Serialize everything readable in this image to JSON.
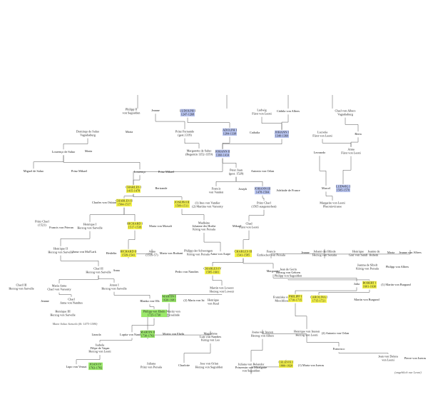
{
  "nodes": [
    {
      "lines": [
        "Philipp II",
        "von Sagrafden"
      ]
    },
    {
      "lines": [
        "Jeanne"
      ]
    },
    {
      "lines": [
        "LUDOLPH I",
        "1247-1268"
      ]
    },
    {
      "lines": [
        "Ludwig",
        "Fürst von Leoni"
      ]
    },
    {
      "lines": [
        "Cäthila von Albers"
      ]
    },
    {
      "lines": [
        "Chad von Albers",
        "Vagrababurg"
      ]
    },
    {
      "lines": [
        "Dominqo de Saluo",
        "Vagrababurg"
      ]
    },
    {
      "lines": [
        "Maria"
      ]
    },
    {
      "lines": [
        "Prinz Fernando",
        "(gest.1319)"
      ]
    },
    {
      "lines": [
        "ADOLPH I",
        "1284-1338"
      ]
    },
    {
      "lines": [
        "Cathalia"
      ]
    },
    {
      "lines": [
        "JOHANN I",
        "1340-1360"
      ]
    },
    {
      "lines": [
        "Lucretia",
        "Fürst von Leoni"
      ]
    },
    {
      "lines": [
        "Berta"
      ]
    },
    {
      "lines": [
        "Lourenço de Saluo"
      ]
    },
    {
      "lines": [
        "Maria"
      ]
    },
    {
      "lines": [
        "Margarette de Saluo",
        "(Regentin 1352-1359)"
      ]
    },
    {
      "lines": [
        "JOHANN II",
        "1360-1414"
      ]
    },
    {
      "lines": [
        "Leonardo"
      ]
    },
    {
      "lines": [
        "Anna",
        "Fürst von Leoni"
      ]
    },
    {
      "lines": [
        "Miguel de Saluo"
      ]
    },
    {
      "lines": [
        "Prinz Mikael"
      ]
    },
    {
      "lines": [
        "Lourenço"
      ]
    },
    {
      "lines": [
        "Prinz Mikael"
      ]
    },
    {
      "lines": [
        "Peter Juan",
        "(gest. 1528)"
      ]
    },
    {
      "lines": [
        "Antonio von Orlan"
      ]
    },
    {
      "lines": [
        "CHARLES I",
        "1415-1478"
      ]
    },
    {
      "lines": [
        "Bertrande"
      ]
    },
    {
      "lines": [
        "Francis",
        "von Vanden"
      ]
    },
    {
      "lines": [
        "Joseph"
      ]
    },
    {
      "lines": [
        "JOHANN III",
        "1478-1504"
      ]
    },
    {
      "lines": [
        "Adelaide de France"
      ]
    },
    {
      "lines": [
        "Marcel"
      ]
    },
    {
      "lines": [
        "LUDWIG I",
        "1505-1570"
      ]
    },
    {
      "lines": [
        "Charles von Osbian"
      ]
    },
    {
      "lines": [
        "CHARLES II",
        "1504-1517"
      ]
    },
    {
      "lines": [
        "JOSEPH III",
        "1509-1511"
      ]
    },
    {
      "lines": [
        "(1) Ines von Vandier",
        "(2) Martina von Varsonty"
      ]
    },
    {
      "lines": [
        "Prinz Charl",
        "(1565 ausgestorben)"
      ]
    },
    {
      "lines": [
        "Margarite von Leoni",
        "Pheoniovirasse"
      ]
    },
    {
      "lines": [
        "Prinz Charl",
        "(1521)"
      ]
    },
    {
      "lines": [
        "Francis von Prieran"
      ]
    },
    {
      "lines": [
        "Henrique I",
        "Herzog von Sarvelle"
      ]
    },
    {
      "lines": [
        "RICHARD I",
        "1517-1539"
      ]
    },
    {
      "lines": [
        "Maria von Marsali"
      ]
    },
    {
      "lines": [
        "Madleine",
        "Johanne der Hoehe",
        "König von Persala"
      ]
    },
    {
      "lines": [
        "Mikael"
      ]
    },
    {
      "lines": [
        "Chad",
        "Fürst von Leoni"
      ]
    },
    {
      "lines": [
        "Henrique II",
        "Herzog von Sarvelle"
      ]
    },
    {
      "lines": [
        "Anna von Mal'Lark"
      ]
    },
    {
      "lines": [
        "Heidelin"
      ]
    },
    {
      "lines": [
        "RICHARD II",
        "1539-1541"
      ]
    },
    {
      "lines": [
        "Anna",
        "(1539-57)"
      ]
    },
    {
      "lines": [
        "Maria von Brabant"
      ]
    },
    {
      "lines": [
        "Philipp der Schwengen",
        "König von Persala"
      ]
    },
    {
      "lines": [
        "Anna von Aurpe"
      ]
    },
    {
      "lines": [
        "CHARLES III",
        "1541-1585"
      ]
    },
    {
      "lines": [
        "Francis",
        "Erzbischof von Persala"
      ]
    },
    {
      "lines": [
        "Jeanne"
      ]
    },
    {
      "lines": [
        "Johann der Blinde",
        "Herzog von Saxalia"
      ]
    },
    {
      "lines": [
        "Henrique",
        "Graf von Sandl"
      ]
    },
    {
      "lines": [
        "Jeanne de",
        "Bohem"
      ]
    },
    {
      "lines": [
        "Marta"
      ]
    },
    {
      "lines": [
        "Jeanne von Albers"
      ]
    },
    {
      "lines": [
        "Charl II",
        "Herzog von Sarvelle"
      ]
    },
    {
      "lines": [
        "Anna"
      ]
    },
    {
      "lines": [
        "Pedro von Nandtes"
      ]
    },
    {
      "lines": [
        "CHARLES IV",
        "1585-1601"
      ]
    },
    {
      "lines": [
        "Margarette"
      ]
    },
    {
      "lines": [
        "Jean de Gerin",
        "Herzog von Gehren",
        "Philipp von Sagrafden"
      ]
    },
    {
      "lines": [
        "Jeanna de Sibolt",
        "König von Persala"
      ]
    },
    {
      "lines": [
        "Philipp von Albers"
      ]
    },
    {
      "lines": [
        "Charl III",
        "Herzog von Sarvelle"
      ]
    },
    {
      "lines": [
        "Maria Anna",
        "Charl von Varsonty"
      ]
    },
    {
      "lines": [
        "Anton I",
        "Herzog von Sarvelle"
      ]
    },
    {
      "lines": [
        "Martin von Lowerz",
        "Herzog von Lowerz"
      ]
    },
    {
      "lines": [
        "Julia"
      ]
    },
    {
      "lines": [
        "ROBERT I",
        "1601-1630"
      ]
    },
    {
      "lines": [
        "(1) Martin von Burgund"
      ]
    },
    {
      "lines": [
        "Jeanne"
      ]
    },
    {
      "lines": [
        "Charl",
        "Anna von Nandtes"
      ]
    },
    {
      "lines": [
        "Blanka von Olk"
      ]
    },
    {
      "lines": [
        "MARTIN I",
        "1630-1681"
      ]
    },
    {
      "lines": [
        "(2) Maria von Isi"
      ]
    },
    {
      "lines": [
        "Henrique",
        "von Kaul"
      ]
    },
    {
      "lines": [
        "Franziska von",
        "Moschlisse"
      ]
    },
    {
      "lines": [
        "PHILIPP I",
        "1710-1715"
      ]
    },
    {
      "lines": [
        "CAROLINA I",
        "1715-1721"
      ]
    },
    {
      "lines": [
        "Martin von Burgund"
      ]
    },
    {
      "lines": [
        "Henrique III",
        "Herzog von Sarvelle"
      ]
    },
    {
      "lines": [
        "Philipp von Ebeln",
        "1725-1730"
      ]
    },
    {
      "lines": [
        "Moritz von",
        "Persalinde"
      ]
    },
    {
      "lines": [
        "Linzola"
      ]
    },
    {
      "lines": [
        "Lupita von Nandtes"
      ]
    },
    {
      "lines": [
        "MARTIN II",
        "1730-1763"
      ]
    },
    {
      "lines": [
        "Moritz von Ebeln"
      ]
    },
    {
      "lines": [
        "Magdalena",
        "Luis von Nandtes",
        "König von Leo"
      ]
    },
    {
      "lines": [
        "Joana von Isteren",
        "Herzog von Albers"
      ]
    },
    {
      "lines": [
        "Henrique von Isteren",
        "Herzog von Leoni"
      ]
    },
    {
      "lines": [
        "(2) Antonio von Orlan"
      ]
    },
    {
      "lines": [
        "Isabela",
        "Filipe de Vaqan",
        "Herzog von Leoni"
      ]
    },
    {
      "lines": [
        "Juliana",
        "Prinz von Persala"
      ]
    },
    {
      "lines": [
        "Lupo von Vesnai"
      ]
    },
    {
      "lines": [
        "JOAN IV",
        "1763-1782"
      ]
    },
    {
      "lines": [
        "Charlotte"
      ]
    },
    {
      "lines": [
        "Jose von Orlan",
        "Herzog von Sagrafden"
      ]
    },
    {
      "lines": [
        "Juliana von Belandor",
        "Prinzessin von Miralgaire",
        "von Sagrafden"
      ]
    },
    {
      "lines": [
        "CELESTE I",
        "1800-1820"
      ]
    },
    {
      "lines": [
        "(1) Marta von Isreras"
      ]
    },
    {
      "lines": [
        "Francisco"
      ]
    },
    {
      "lines": [
        "Jean von Delera",
        "von Leoni"
      ]
    },
    {
      "lines": [
        "Pierre von Isreras"
      ]
    }
  ],
  "annotations": [
    "Mane Saluo Saruela (8c 1475-1580)",
    "(angeblich nur Leoni)"
  ]
}
